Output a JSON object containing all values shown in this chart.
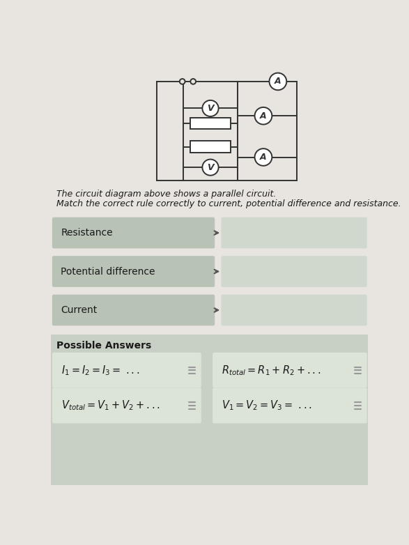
{
  "bg_color": "#e8e4e0",
  "page_bg": "#e8e4e0",
  "dark_text": "#1a1a1a",
  "title_text": "The circuit diagram above shows a parallel circuit.",
  "subtitle_text": "Match the correct rule correctly to current, potential difference and resistance.",
  "row_labels": [
    "Resistance",
    "Potential difference",
    "Current"
  ],
  "possible_answers_title": "Possible Answers",
  "left_box_color": "#b8c2b5",
  "right_box_color": "#d0d8ce",
  "pa_bg_color": "#c8cfc5",
  "ans_box_color": "#dce4d8",
  "line_color": "#333333",
  "arrow_color": "#555555",
  "handle_color": "#999999",
  "ans_texts_left": [
    "$I_1 = I_2 = I_3 = \\ ...$",
    "$V_{total} = V_1 + V_2 + ...$"
  ],
  "ans_texts_right": [
    "$R_{total} = R_1 + R_2 + ...$",
    "$V_1 = V_2 = V_3 = \\ ...$"
  ]
}
